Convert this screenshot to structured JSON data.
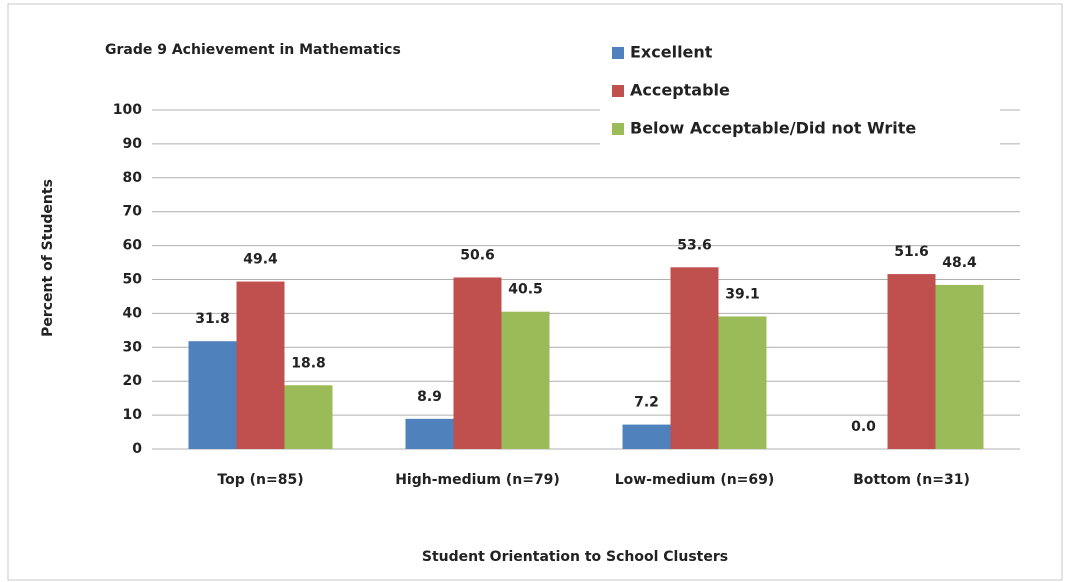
{
  "chart_data": {
    "type": "bar",
    "title": "Grade 9 Achievement in Mathematics",
    "x_label": "Student Orientation to School Clusters",
    "y_label": "Percent of Students",
    "categories": [
      "Top (n=85)",
      "High-medium (n=79)",
      "Low-medium (n=69)",
      "Bottom (n=31)"
    ],
    "series": [
      {
        "name": "Excellent",
        "color": "#4f81bd",
        "values": [
          31.8,
          8.9,
          7.2,
          0
        ],
        "value_labels": [
          "31.8",
          "8.9",
          "7.2",
          "0.0"
        ]
      },
      {
        "name": "Acceptable",
        "color": "#c0504d",
        "values": [
          49.4,
          50.6,
          53.6,
          51.6
        ]
      },
      {
        "name": "Below Acceptable/Did not Write",
        "color": "#9bbb59",
        "values": [
          18.8,
          40.5,
          39.1,
          48.4
        ]
      }
    ],
    "ylim": [
      0,
      100
    ],
    "yticks": [
      0,
      10,
      20,
      30,
      40,
      50,
      60,
      70,
      80,
      90,
      100
    ],
    "grid": true,
    "legend": "top-right"
  }
}
